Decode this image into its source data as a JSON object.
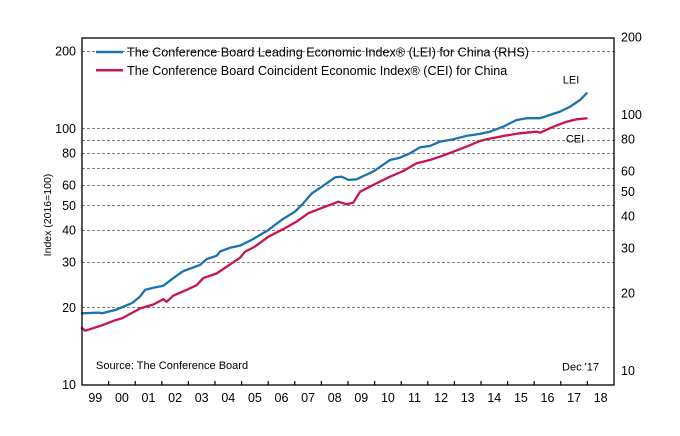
{
  "chart_data": {
    "type": "line",
    "title": "",
    "xlabel": "",
    "ylabel": "Index (2016=100)",
    "y2label": "",
    "yscale": "log",
    "y2scale": "log",
    "xlim": [
      1999,
      2019
    ],
    "ylim": [
      9.94,
      225.3
    ],
    "y2lim": [
      8.76,
      198.6
    ],
    "grid": true,
    "x_ticks": [
      1999,
      2000,
      2001,
      2002,
      2003,
      2004,
      2005,
      2006,
      2007,
      2008,
      2009,
      2010,
      2011,
      2012,
      2013,
      2014,
      2015,
      2016,
      2017,
      2018
    ],
    "x_tick_labels": [
      "99",
      "00",
      "01",
      "02",
      "03",
      "04",
      "05",
      "06",
      "07",
      "08",
      "09",
      "10",
      "11",
      "12",
      "13",
      "14",
      "15",
      "16",
      "17",
      "18"
    ],
    "y_ticks": [
      10,
      20,
      30,
      40,
      50,
      60,
      80,
      100,
      200
    ],
    "y_tick_labels": [
      "10",
      "20",
      "30",
      "40",
      "50",
      "60",
      "80",
      "100",
      "200"
    ],
    "y_gridlines": [
      20,
      30,
      40,
      50,
      60,
      70,
      80,
      90,
      100,
      200
    ],
    "y2_ticks": [
      10,
      20,
      30,
      40,
      50,
      60,
      80,
      100,
      200
    ],
    "y2_tick_labels": [
      "10",
      "20",
      "30",
      "40",
      "50",
      "60",
      "80",
      "100",
      "200"
    ],
    "legend": {
      "placement": "top-left",
      "entries": [
        "The Conference Board Leading Economic Index® (LEI) for China (RHS)",
        "The Conference Board Coincident Economic Index® (CEI) for China"
      ]
    },
    "series": [
      {
        "name": "The Conference Board Leading Economic Index® (LEI) for China (RHS)",
        "short": "LEI",
        "axis": "right",
        "color": "#1a72b0",
        "x": [
          1999.0,
          1999.63,
          1999.75,
          2000.25,
          2000.88,
          2001.18,
          2001.26,
          2001.37,
          2001.68,
          2002.06,
          2002.43,
          2002.81,
          2003.18,
          2003.44,
          2003.69,
          2004.06,
          2004.19,
          2004.56,
          2004.94,
          2005.38,
          2006.0,
          2006.51,
          2007.01,
          2007.32,
          2007.64,
          2008.01,
          2008.51,
          2008.76,
          2009.01,
          2009.33,
          2009.58,
          2009.95,
          2010.58,
          2010.95,
          2011.33,
          2011.71,
          2012.08,
          2012.46,
          2012.96,
          2013.46,
          2013.96,
          2014.34,
          2014.84,
          2015.34,
          2015.72,
          2016.22,
          2016.59,
          2016.97,
          2017.35,
          2017.72,
          2017.97
        ],
        "y": [
          16.7,
          16.8,
          16.7,
          17.2,
          18.3,
          19.4,
          19.9,
          20.6,
          21.0,
          21.4,
          22.9,
          24.4,
          25.2,
          25.8,
          27.2,
          28.0,
          29.1,
          30.1,
          30.7,
          32.3,
          35.3,
          38.7,
          41.7,
          44.9,
          49.1,
          52.1,
          56.7,
          57.1,
          55.4,
          55.7,
          57.4,
          59.7,
          66.3,
          67.7,
          70.4,
          74.3,
          75.2,
          78.2,
          79.9,
          82.3,
          83.8,
          85.5,
          89.5,
          95.0,
          96.5,
          96.5,
          99.4,
          102.4,
          107.1,
          113.7,
          120.8
        ]
      },
      {
        "name": "The Conference Board Coincident Economic Index® (CEI) for China",
        "short": "CEI",
        "axis": "left",
        "color": "#c8144f",
        "x": [
          1999.0,
          1999.12,
          1999.75,
          2000.25,
          2000.5,
          2001.19,
          2001.68,
          2002.06,
          2002.18,
          2002.43,
          2002.94,
          2003.31,
          2003.56,
          2004.06,
          2004.44,
          2004.94,
          2005.13,
          2005.5,
          2006.0,
          2006.51,
          2007.07,
          2007.51,
          2008.14,
          2008.64,
          2008.95,
          2009.2,
          2009.45,
          2009.95,
          2010.58,
          2011.08,
          2011.58,
          2012.08,
          2012.46,
          2012.96,
          2013.46,
          2013.96,
          2014.21,
          2014.84,
          2015.46,
          2016.09,
          2016.22,
          2016.72,
          2017.22,
          2017.6,
          2017.97
        ],
        "y": [
          16.6,
          16.2,
          17.0,
          17.8,
          18.1,
          19.8,
          20.5,
          21.5,
          21.0,
          22.2,
          23.4,
          24.4,
          26.0,
          27.1,
          28.8,
          31.2,
          33.0,
          34.5,
          37.7,
          40.1,
          43.2,
          46.6,
          49.4,
          51.7,
          50.5,
          51.2,
          56.5,
          60.1,
          64.7,
          68.1,
          73.0,
          75.2,
          77.5,
          81.0,
          84.8,
          89.2,
          90.6,
          93.3,
          95.6,
          97.0,
          96.1,
          101.5,
          106.1,
          108.4,
          109.4
        ]
      }
    ],
    "annotations": {
      "source": "Source: The Conference Board",
      "latest_date": "Dec '17",
      "lei_label": "LEI",
      "cei_label": "CEI"
    }
  }
}
